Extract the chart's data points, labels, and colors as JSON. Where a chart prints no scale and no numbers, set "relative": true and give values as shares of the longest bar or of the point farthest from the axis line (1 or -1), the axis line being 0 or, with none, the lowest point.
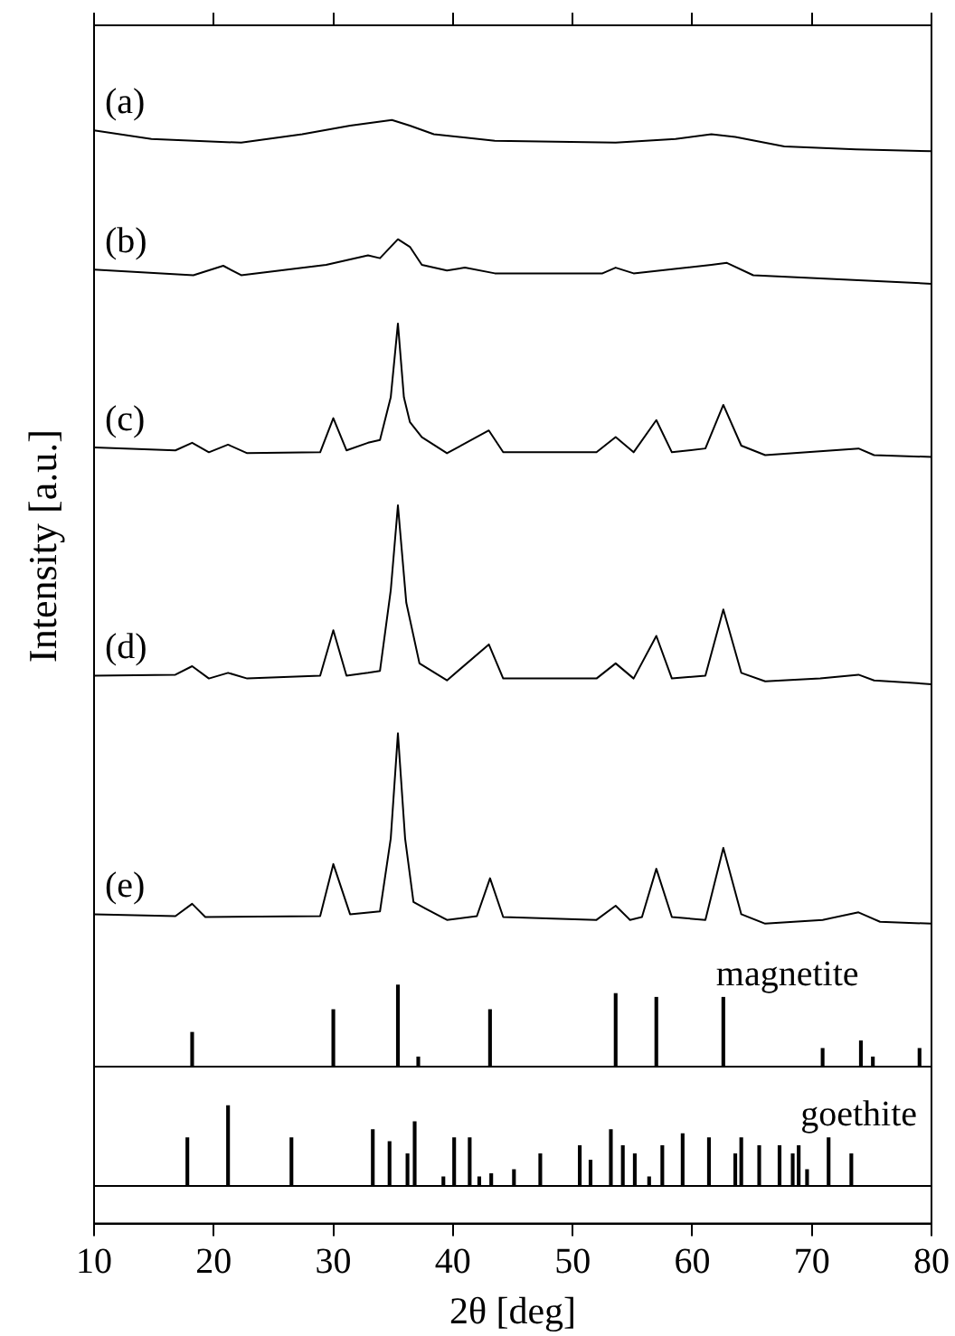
{
  "chart_data": [
    {
      "type": "line",
      "ylabel": "Intensity [a.u.]",
      "relative": true,
      "xlim": [
        10,
        80
      ],
      "xticks": [
        10,
        20,
        30,
        40,
        50,
        60,
        70,
        80
      ],
      "tick_labels": false,
      "grid": false,
      "legend": false,
      "marker": "none",
      "line_style": "solid",
      "series": [
        {
          "name": "(a)",
          "color": "#000000",
          "x": [
            10,
            14.8,
            22.3,
            27.4,
            31.4,
            34.9,
            36.4,
            38.4,
            43.5,
            53.6,
            58.6,
            61.6,
            63.6,
            67.7,
            73.7,
            80
          ],
          "values": [
            0.989,
            0.98,
            0.976,
            0.985,
            0.994,
            1.0,
            0.994,
            0.985,
            0.978,
            0.976,
            0.98,
            0.985,
            0.982,
            0.972,
            0.969,
            0.967
          ]
        },
        {
          "name": "(b)",
          "color": "#000000",
          "x": [
            10,
            18.3,
            20.8,
            22.3,
            29.4,
            32.9,
            33.9,
            35.4,
            36.4,
            37.4,
            39.5,
            41,
            43.5,
            52.5,
            53.6,
            55.1,
            61.6,
            62.9,
            65.1,
            80
          ],
          "values": [
            0.842,
            0.836,
            0.846,
            0.836,
            0.847,
            0.857,
            0.854,
            0.874,
            0.866,
            0.847,
            0.841,
            0.844,
            0.838,
            0.838,
            0.844,
            0.838,
            0.847,
            0.849,
            0.836,
            0.827
          ]
        },
        {
          "name": "(c)",
          "color": "#000000",
          "x": [
            10,
            16.8,
            18.2,
            19.6,
            21.2,
            22.8,
            28.9,
            30.0,
            31.1,
            32.9,
            33.9,
            34.8,
            35.4,
            35.9,
            36.4,
            37.4,
            39.5,
            43.0,
            44.2,
            52.0,
            53.6,
            55.1,
            57.0,
            58.3,
            61.1,
            62.6,
            64.1,
            66.1,
            73.9,
            75.2,
            80
          ],
          "values": [
            0.654,
            0.651,
            0.659,
            0.649,
            0.657,
            0.648,
            0.649,
            0.685,
            0.651,
            0.659,
            0.662,
            0.707,
            0.785,
            0.707,
            0.681,
            0.665,
            0.648,
            0.672,
            0.649,
            0.649,
            0.665,
            0.649,
            0.683,
            0.649,
            0.653,
            0.699,
            0.656,
            0.646,
            0.653,
            0.646,
            0.644
          ]
        },
        {
          "name": "(d)",
          "color": "#000000",
          "x": [
            10,
            16.8,
            18.2,
            19.6,
            21.2,
            22.8,
            28.9,
            30.0,
            31.1,
            32.9,
            33.9,
            34.8,
            35.4,
            36.1,
            37.2,
            39.5,
            43.0,
            44.2,
            52.0,
            53.6,
            55.1,
            57.0,
            58.3,
            61.1,
            62.6,
            64.1,
            66.1,
            70.7,
            73.9,
            75.2,
            80
          ],
          "values": [
            0.413,
            0.414,
            0.423,
            0.41,
            0.416,
            0.41,
            0.413,
            0.461,
            0.413,
            0.416,
            0.418,
            0.503,
            0.593,
            0.49,
            0.426,
            0.408,
            0.446,
            0.41,
            0.41,
            0.426,
            0.41,
            0.455,
            0.41,
            0.413,
            0.483,
            0.416,
            0.407,
            0.41,
            0.414,
            0.408,
            0.404
          ]
        },
        {
          "name": "(e)",
          "color": "#000000",
          "x": [
            10,
            16.8,
            18.2,
            19.3,
            28.9,
            30.0,
            31.4,
            33.9,
            34.8,
            35.4,
            36.0,
            36.7,
            37.7,
            39.5,
            42.0,
            43.1,
            44.2,
            52.0,
            53.6,
            54.8,
            55.8,
            57.0,
            58.3,
            61.1,
            62.6,
            64.1,
            66.1,
            70.9,
            73.9,
            75.7,
            80
          ],
          "values": [
            0.161,
            0.159,
            0.172,
            0.158,
            0.159,
            0.214,
            0.161,
            0.164,
            0.241,
            0.352,
            0.241,
            0.174,
            0.167,
            0.155,
            0.159,
            0.199,
            0.158,
            0.155,
            0.17,
            0.155,
            0.158,
            0.209,
            0.158,
            0.155,
            0.231,
            0.161,
            0.151,
            0.155,
            0.163,
            0.153,
            0.151
          ]
        },
        {
          "name": "magnetite",
          "type": "bar",
          "color": "#000000",
          "x": [
            18.2,
            30.0,
            35.4,
            37.1,
            43.1,
            53.6,
            57.0,
            62.6,
            70.9,
            74.1,
            75.1,
            79.0
          ],
          "values": [
            0.036,
            0.06,
            0.086,
            0.01,
            0.06,
            0.077,
            0.073,
            0.073,
            0.019,
            0.027,
            0.01,
            0.019
          ]
        }
      ]
    },
    {
      "type": "bar",
      "xlabel": "2θ [deg]",
      "relative": true,
      "xlim": [
        10,
        80
      ],
      "xticks": [
        10,
        20,
        30,
        40,
        50,
        60,
        70,
        80
      ],
      "tick_labels": "x",
      "grid": false,
      "legend": false,
      "series": [
        {
          "name": "goethite",
          "color": "#000000",
          "x": [
            17.8,
            21.2,
            26.5,
            33.3,
            34.7,
            36.2,
            36.8,
            39.2,
            40.1,
            41.4,
            42.2,
            43.2,
            45.1,
            47.3,
            50.6,
            51.5,
            53.2,
            54.2,
            55.2,
            56.4,
            57.5,
            59.2,
            61.4,
            63.6,
            64.1,
            65.6,
            67.3,
            68.4,
            68.9,
            69.6,
            71.4,
            73.3
          ],
          "values": [
            0.6,
            1.0,
            0.6,
            0.7,
            0.55,
            0.4,
            0.8,
            0.11,
            0.6,
            0.6,
            0.11,
            0.15,
            0.2,
            0.4,
            0.5,
            0.32,
            0.7,
            0.5,
            0.4,
            0.11,
            0.5,
            0.65,
            0.6,
            0.4,
            0.6,
            0.5,
            0.5,
            0.4,
            0.5,
            0.2,
            0.6,
            0.4
          ]
        }
      ]
    }
  ]
}
